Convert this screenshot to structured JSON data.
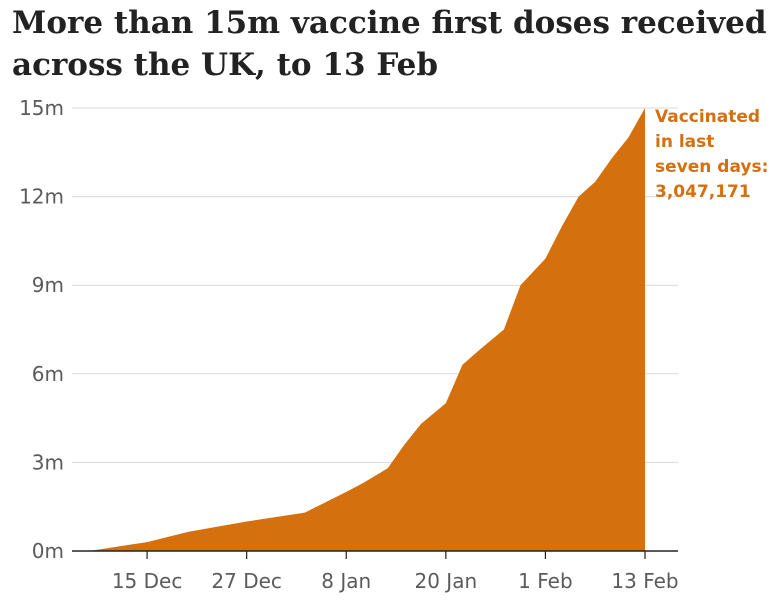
{
  "title": "More than 15m vaccine first doses received across the UK, to 13 Feb",
  "colors": {
    "area": "#d4700d",
    "grid": "#d9d9d9",
    "axis": "#222222",
    "text": "#5b5b5b"
  },
  "chart_data": {
    "type": "area",
    "title": "More than 15m vaccine first doses received across the UK, to 13 Feb",
    "xlabel": "",
    "ylabel": "",
    "y_unit": "m",
    "ylim": [
      0,
      15
    ],
    "yticks": [
      0,
      3,
      6,
      9,
      12,
      15
    ],
    "ytick_labels": [
      "0m",
      "3m",
      "6m",
      "9m",
      "12m",
      "15m"
    ],
    "xlim": [
      "2020-12-08",
      "2021-02-13"
    ],
    "xticks": [
      "2020-12-15",
      "2020-12-27",
      "2021-01-08",
      "2021-01-20",
      "2021-02-01",
      "2021-02-13"
    ],
    "xtick_labels": [
      "15 Dec",
      "27 Dec",
      "8 Jan",
      "20 Jan",
      "1 Feb",
      "13 Feb"
    ],
    "grid": true,
    "series": [
      {
        "x": [
          "2020-12-08",
          "2020-12-15",
          "2020-12-20",
          "2020-12-27",
          "2021-01-03",
          "2021-01-08",
          "2021-01-10",
          "2021-01-13",
          "2021-01-15",
          "2021-01-17",
          "2021-01-20",
          "2021-01-22",
          "2021-01-24",
          "2021-01-27",
          "2021-01-29",
          "2021-02-01",
          "2021-02-03",
          "2021-02-05",
          "2021-02-07",
          "2021-02-09",
          "2021-02-11",
          "2021-02-13"
        ],
        "values": [
          0.0,
          0.3,
          0.65,
          1.0,
          1.3,
          2.0,
          2.3,
          2.8,
          3.6,
          4.3,
          5.0,
          6.3,
          6.8,
          7.5,
          9.0,
          9.9,
          11.0,
          12.0,
          12.5,
          13.3,
          14.0,
          15.0
        ]
      }
    ],
    "annotation": {
      "lines": [
        "Vaccinated",
        "in last",
        "seven days:",
        "3,047,171"
      ]
    }
  }
}
